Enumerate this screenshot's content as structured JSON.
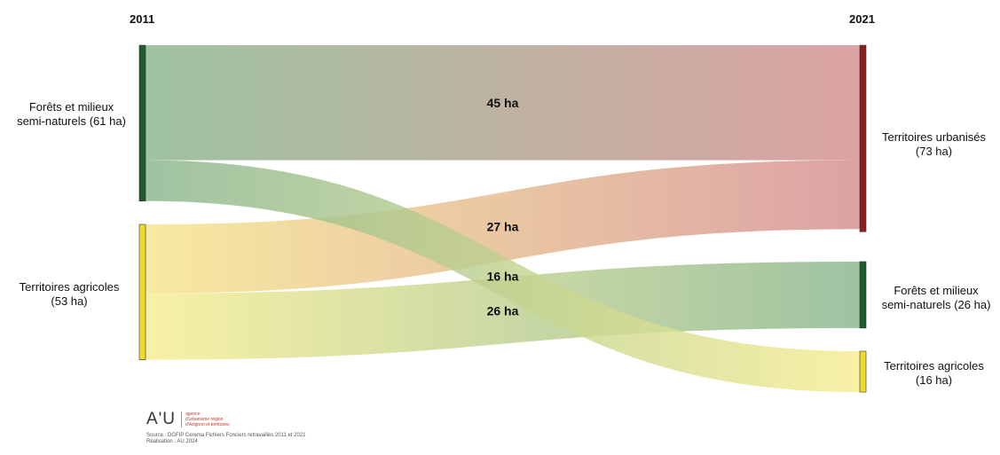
{
  "header": {
    "year_left": "2011",
    "year_right": "2021"
  },
  "chart_data": {
    "type": "sankey",
    "title": "",
    "unit": "ha",
    "nodes_left": [
      {
        "id": "forets_2011",
        "label_line1": "Forêts et milieux",
        "label_line2": "semi-naturels (61 ha)",
        "value": 61,
        "color": "#1f5c2b"
      },
      {
        "id": "agri_2011",
        "label_line1": "Territoires agricoles",
        "label_line2": "(53 ha)",
        "value": 53,
        "color": "#f0dc28"
      }
    ],
    "nodes_right": [
      {
        "id": "urb_2021",
        "label_line1": "Territoires urbanisés",
        "label_line2": "(73 ha)",
        "value": 73,
        "color": "#8a1f1f"
      },
      {
        "id": "forets_2021",
        "label_line1": "Forêts et milieux",
        "label_line2": "semi-naturels (26 ha)",
        "value": 26,
        "color": "#1f5c2b"
      },
      {
        "id": "agri_2021",
        "label_line1": "Territoires agricoles",
        "label_line2": "(16 ha)",
        "value": 16,
        "color": "#f0dc28"
      }
    ],
    "flows": [
      {
        "source": "forets_2011",
        "target": "urb_2021",
        "value": 45,
        "label": "45 ha",
        "from_color": "#8ab58d",
        "to_color": "#d48e90"
      },
      {
        "source": "agri_2011",
        "target": "urb_2021",
        "value": 27,
        "label": "27 ha",
        "from_color": "#f6e58c",
        "to_color": "#d48e90"
      },
      {
        "source": "agri_2011",
        "target": "forets_2021",
        "value": 26,
        "label": "26 ha",
        "from_color": "#f6ee92",
        "to_color": "#8ab58d"
      },
      {
        "source": "forets_2011",
        "target": "agri_2021",
        "value": 16,
        "label": "16 ha",
        "from_color": "#8ab58d",
        "to_color": "#f6ee92"
      }
    ]
  },
  "footer": {
    "logo_mark": "A'U",
    "logo_line1": "agence",
    "logo_line2": "d'urbanisme région",
    "logo_line3": "d'Avignon et territoires",
    "source_line": "Source : DGFIP Cerema Fichiers Fonciers retravaillés 2011 et 2021",
    "credit_line": "Réalisation : AU 2024"
  }
}
